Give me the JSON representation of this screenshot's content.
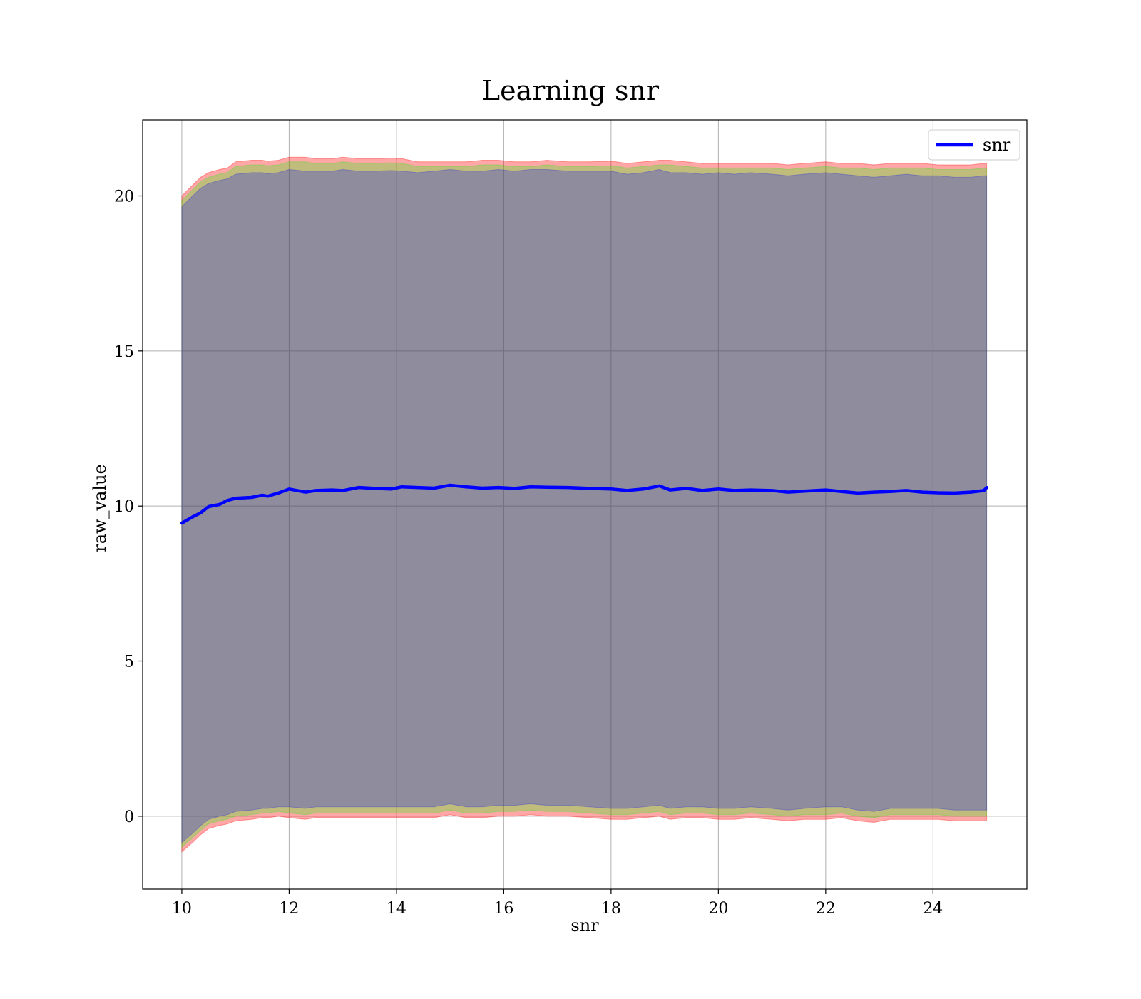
{
  "chart_data": {
    "type": "line",
    "title": "Learning snr",
    "xlabel": "snr",
    "ylabel": "raw_value",
    "xlim": [
      9.27,
      25.75
    ],
    "ylim": [
      -2.35,
      22.45
    ],
    "x_ticks": [
      10,
      12,
      14,
      16,
      18,
      20,
      22,
      24
    ],
    "y_ticks": [
      0,
      5,
      10,
      15,
      20
    ],
    "grid": true,
    "legend_position": "top-right",
    "series": [
      {
        "name": "snr",
        "color": "#0000ff",
        "x": [
          10.0,
          10.2,
          10.35,
          10.5,
          10.7,
          10.85,
          11.0,
          11.3,
          11.5,
          11.6,
          11.8,
          12.0,
          12.3,
          12.5,
          12.8,
          13.0,
          13.3,
          13.6,
          13.9,
          14.1,
          14.4,
          14.7,
          15.0,
          15.3,
          15.6,
          15.9,
          16.2,
          16.5,
          16.8,
          17.2,
          17.6,
          18.0,
          18.3,
          18.6,
          18.9,
          19.1,
          19.4,
          19.7,
          20.0,
          20.3,
          20.6,
          21.0,
          21.3,
          21.6,
          22.0,
          22.3,
          22.6,
          22.9,
          23.2,
          23.5,
          23.8,
          24.1,
          24.4,
          24.7,
          24.95,
          25.0
        ],
        "values": [
          9.45,
          9.65,
          9.78,
          9.98,
          10.05,
          10.18,
          10.25,
          10.28,
          10.35,
          10.32,
          10.42,
          10.55,
          10.45,
          10.5,
          10.52,
          10.5,
          10.6,
          10.57,
          10.55,
          10.62,
          10.6,
          10.58,
          10.67,
          10.62,
          10.58,
          10.6,
          10.57,
          10.62,
          10.61,
          10.6,
          10.57,
          10.55,
          10.5,
          10.55,
          10.65,
          10.52,
          10.57,
          10.5,
          10.55,
          10.5,
          10.52,
          10.5,
          10.45,
          10.48,
          10.52,
          10.47,
          10.42,
          10.45,
          10.47,
          10.5,
          10.45,
          10.43,
          10.42,
          10.45,
          10.5,
          10.6
        ]
      }
    ],
    "bands": [
      {
        "color": "#ff0000",
        "alpha": 0.35,
        "upper": [
          20.0,
          20.35,
          20.6,
          20.75,
          20.85,
          20.9,
          21.1,
          21.15,
          21.15,
          21.12,
          21.15,
          21.25,
          21.25,
          21.2,
          21.2,
          21.25,
          21.2,
          21.2,
          21.22,
          21.2,
          21.1,
          21.1,
          21.1,
          21.1,
          21.15,
          21.15,
          21.1,
          21.1,
          21.15,
          21.1,
          21.1,
          21.12,
          21.05,
          21.1,
          21.15,
          21.15,
          21.1,
          21.05,
          21.05,
          21.05,
          21.05,
          21.05,
          21.0,
          21.05,
          21.1,
          21.05,
          21.05,
          21.0,
          21.05,
          21.05,
          21.05,
          21.0,
          21.0,
          21.0,
          21.05,
          21.05
        ],
        "lower": [
          -1.15,
          -0.85,
          -0.6,
          -0.4,
          -0.3,
          -0.25,
          -0.15,
          -0.1,
          -0.05,
          -0.05,
          0.0,
          -0.05,
          -0.1,
          -0.05,
          -0.05,
          -0.05,
          -0.05,
          -0.05,
          -0.05,
          -0.05,
          -0.05,
          -0.05,
          0.05,
          -0.05,
          -0.05,
          0.0,
          0.0,
          0.05,
          0.0,
          0.0,
          -0.05,
          -0.1,
          -0.1,
          -0.05,
          0.0,
          -0.1,
          -0.05,
          -0.05,
          -0.1,
          -0.1,
          -0.05,
          -0.1,
          -0.15,
          -0.1,
          -0.1,
          -0.05,
          -0.15,
          -0.2,
          -0.1,
          -0.1,
          -0.1,
          -0.1,
          -0.15,
          -0.15,
          -0.15,
          -0.15
        ]
      },
      {
        "color": "#00ff00",
        "alpha": 0.25,
        "upper": [
          19.85,
          20.2,
          20.45,
          20.6,
          20.7,
          20.75,
          20.95,
          21.0,
          21.0,
          20.97,
          21.0,
          21.1,
          21.1,
          21.05,
          21.05,
          21.1,
          21.05,
          21.05,
          21.07,
          21.05,
          20.95,
          20.95,
          20.95,
          20.95,
          21.0,
          21.0,
          20.95,
          20.95,
          21.0,
          20.95,
          20.95,
          20.97,
          20.9,
          20.95,
          21.0,
          21.0,
          20.95,
          20.9,
          20.9,
          20.9,
          20.9,
          20.9,
          20.85,
          20.9,
          20.95,
          20.9,
          20.9,
          20.85,
          20.9,
          20.9,
          20.9,
          20.85,
          20.85,
          20.85,
          20.9,
          20.9
        ],
        "lower": [
          -1.0,
          -0.7,
          -0.45,
          -0.25,
          -0.15,
          -0.1,
          0.0,
          0.05,
          0.1,
          0.1,
          0.15,
          0.1,
          0.05,
          0.1,
          0.1,
          0.1,
          0.1,
          0.1,
          0.1,
          0.1,
          0.1,
          0.1,
          0.2,
          0.1,
          0.1,
          0.15,
          0.15,
          0.2,
          0.15,
          0.15,
          0.1,
          0.05,
          0.05,
          0.1,
          0.15,
          0.05,
          0.1,
          0.1,
          0.05,
          0.05,
          0.1,
          0.05,
          0.0,
          0.05,
          0.05,
          0.1,
          0.0,
          -0.05,
          0.05,
          0.05,
          0.05,
          0.05,
          0.0,
          0.0,
          0.0,
          0.0
        ]
      },
      {
        "color": "#0000ff",
        "alpha": 0.25,
        "upper": [
          19.65,
          20.0,
          20.25,
          20.4,
          20.5,
          20.55,
          20.7,
          20.75,
          20.75,
          20.72,
          20.75,
          20.85,
          20.8,
          20.8,
          20.8,
          20.85,
          20.8,
          20.8,
          20.82,
          20.8,
          20.75,
          20.8,
          20.85,
          20.8,
          20.8,
          20.85,
          20.8,
          20.85,
          20.85,
          20.8,
          20.8,
          20.8,
          20.7,
          20.75,
          20.85,
          20.75,
          20.75,
          20.7,
          20.75,
          20.7,
          20.75,
          20.7,
          20.65,
          20.7,
          20.75,
          20.7,
          20.65,
          20.6,
          20.65,
          20.7,
          20.65,
          20.65,
          20.6,
          20.6,
          20.65,
          20.65
        ],
        "lower": [
          -0.85,
          -0.55,
          -0.3,
          -0.1,
          0.0,
          0.05,
          0.15,
          0.2,
          0.25,
          0.25,
          0.3,
          0.3,
          0.25,
          0.3,
          0.3,
          0.3,
          0.3,
          0.3,
          0.3,
          0.3,
          0.3,
          0.3,
          0.4,
          0.3,
          0.3,
          0.35,
          0.35,
          0.4,
          0.35,
          0.35,
          0.3,
          0.25,
          0.25,
          0.3,
          0.35,
          0.25,
          0.3,
          0.3,
          0.25,
          0.25,
          0.3,
          0.25,
          0.2,
          0.25,
          0.3,
          0.3,
          0.2,
          0.15,
          0.25,
          0.25,
          0.25,
          0.25,
          0.2,
          0.2,
          0.2,
          0.2
        ]
      }
    ]
  }
}
